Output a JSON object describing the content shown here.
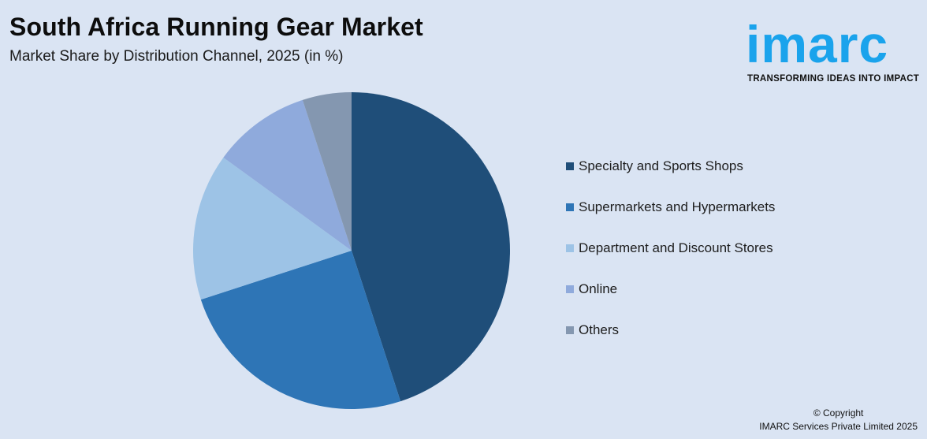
{
  "header": {
    "title": "South Africa Running Gear Market",
    "subtitle": "Market Share by Distribution Channel, 2025 (in %)"
  },
  "logo": {
    "wordmark": "imarc",
    "tagline": "TRANSFORMING IDEAS INTO IMPACT",
    "color": "#1aa3ec"
  },
  "legend": {
    "items": [
      {
        "label": "Specialty and Sports Shops",
        "color": "#1f4e79"
      },
      {
        "label": "Supermarkets and Hypermarkets",
        "color": "#2e75b6"
      },
      {
        "label": "Department and Discount Stores",
        "color": "#9dc3e6"
      },
      {
        "label": "Online",
        "color": "#8faadc"
      },
      {
        "label": "Others",
        "color": "#8497b0"
      }
    ]
  },
  "footer": {
    "copyright_line1": "© Copyright",
    "copyright_line2": "IMARC Services Private Limited 2025"
  },
  "chart_data": {
    "type": "pie",
    "title": "South Africa Running Gear Market",
    "subtitle": "Market Share by Distribution Channel, 2025 (in %)",
    "categories": [
      "Specialty and Sports Shops",
      "Supermarkets and Hypermarkets",
      "Department and Discount Stores",
      "Online",
      "Others"
    ],
    "values": [
      45,
      25,
      15,
      10,
      5
    ],
    "colors": [
      "#1f4e79",
      "#2e75b6",
      "#9dc3e6",
      "#8faadc",
      "#8497b0"
    ],
    "start_angle": "12 o'clock, clockwise",
    "legend_position": "right",
    "data_labels": false
  }
}
